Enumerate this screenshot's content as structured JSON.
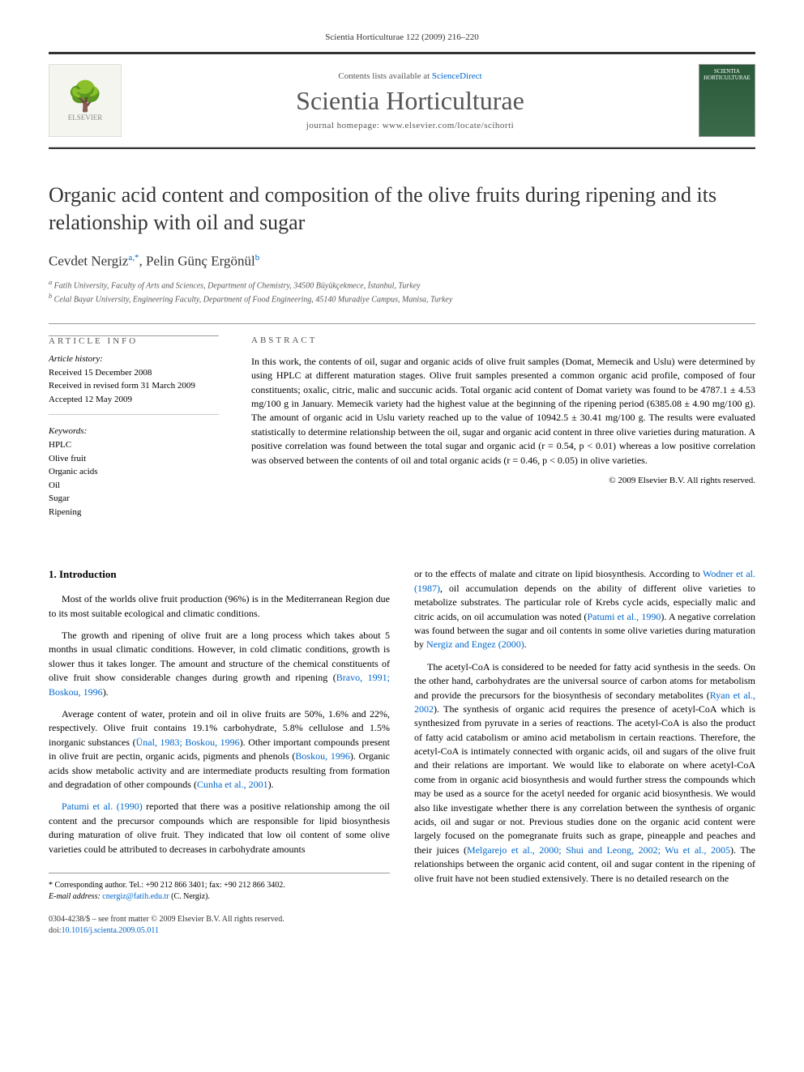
{
  "header": {
    "citation": "Scientia Horticulturae 122 (2009) 216–220",
    "contents_prefix": "Contents lists available at ",
    "contents_link": "ScienceDirect",
    "journal_name": "Scientia Horticulturae",
    "homepage_prefix": "journal homepage: ",
    "homepage_url": "www.elsevier.com/locate/scihorti",
    "elsevier_label": "ELSEVIER",
    "cover_label": "SCIENTIA HORTICULTURAE"
  },
  "title": "Organic acid content and composition of the olive fruits during ripening and its relationship with oil and sugar",
  "authors": [
    {
      "name": "Cevdet Nergiz",
      "marks": "a,*"
    },
    {
      "name": "Pelin Günç Ergönül",
      "marks": "b"
    }
  ],
  "affiliations": [
    {
      "mark": "a",
      "text": "Fatih University, Faculty of Arts and Sciences, Department of Chemistry, 34500 Büyükçekmece, İstanbul, Turkey"
    },
    {
      "mark": "b",
      "text": "Celal Bayar University, Engineering Faculty, Department of Food Engineering, 45140 Muradiye Campus, Manisa, Turkey"
    }
  ],
  "article_info": {
    "heading": "ARTICLE INFO",
    "history_label": "Article history:",
    "history": [
      "Received 15 December 2008",
      "Received in revised form 31 March 2009",
      "Accepted 12 May 2009"
    ],
    "keywords_label": "Keywords:",
    "keywords": [
      "HPLC",
      "Olive fruit",
      "Organic acids",
      "Oil",
      "Sugar",
      "Ripening"
    ]
  },
  "abstract": {
    "heading": "ABSTRACT",
    "text": "In this work, the contents of oil, sugar and organic acids of olive fruit samples (Domat, Memecik and Uslu) were determined by using HPLC at different maturation stages. Olive fruit samples presented a common organic acid profile, composed of four constituents; oxalic, citric, malic and succunic acids. Total organic acid content of Domat variety was found to be 4787.1 ± 4.53 mg/100 g in January. Memecik variety had the highest value at the beginning of the ripening period (6385.08 ± 4.90 mg/100 g). The amount of organic acid in Uslu variety reached up to the value of 10942.5 ± 30.41 mg/100 g. The results were evaluated statistically to determine relationship between the oil, sugar and organic acid content in three olive varieties during maturation. A positive correlation was found between the total sugar and organic acid (r = 0.54, p < 0.01) whereas a low positive correlation was observed between the contents of oil and total organic acids (r = 0.46, p < 0.05) in olive varieties.",
    "copyright": "© 2009 Elsevier B.V. All rights reserved."
  },
  "body": {
    "section_heading": "1. Introduction",
    "left_paras": [
      "Most of the worlds olive fruit production (96%) is in the Mediterranean Region due to its most suitable ecological and climatic conditions.",
      "The growth and ripening of olive fruit are a long process which takes about 5 months in usual climatic conditions. However, in cold climatic conditions, growth is slower thus it takes longer. The amount and structure of the chemical constituents of olive fruit show considerable changes during growth and ripening (<span class='ref-link'>Bravo, 1991; Boskou, 1996</span>).",
      "Average content of water, protein and oil in olive fruits are 50%, 1.6% and 22%, respectively. Olive fruit contains 19.1% carbohydrate, 5.8% cellulose and 1.5% inorganic substances (<span class='ref-link'>Ünal, 1983; Boskou, 1996</span>). Other important compounds present in olive fruit are pectin, organic acids, pigments and phenols (<span class='ref-link'>Boskou, 1996</span>). Organic acids show metabolic activity and are intermediate products resulting from formation and degradation of other compounds (<span class='ref-link'>Cunha et al., 2001</span>).",
      "<span class='ref-link'>Patumi et al. (1990)</span> reported that there was a positive relationship among the oil content and the precursor compounds which are responsible for lipid biosynthesis during maturation of olive fruit. They indicated that low oil content of some olive varieties could be attributed to decreases in carbohydrate amounts"
    ],
    "right_paras": [
      "or to the effects of malate and citrate on lipid biosynthesis. According to <span class='ref-link'>Wodner et al. (1987)</span>, oil accumulation depends on the ability of different olive varieties to metabolize substrates. The particular role of Krebs cycle acids, especially malic and citric acids, on oil accumulation was noted (<span class='ref-link'>Patumi et al., 1990</span>). A negative correlation was found between the sugar and oil contents in some olive varieties during maturation by <span class='ref-link'>Nergiz and Engez (2000)</span>.",
      "The acetyl-CoA is considered to be needed for fatty acid synthesis in the seeds. On the other hand, carbohydrates are the universal source of carbon atoms for metabolism and provide the precursors for the biosynthesis of secondary metabolites (<span class='ref-link'>Ryan et al., 2002</span>). The synthesis of organic acid requires the presence of acetyl-CoA which is synthesized from pyruvate in a series of reactions. The acetyl-CoA is also the product of fatty acid catabolism or amino acid metabolism in certain reactions. Therefore, the acetyl-CoA is intimately connected with organic acids, oil and sugars of the olive fruit and their relations are important. We would like to elaborate on where acetyl-CoA come from in organic acid biosynthesis and would further stress the compounds which may be used as a source for the acetyl needed for organic acid biosynthesis. We would also like investigate whether there is any correlation between the synthesis of organic acids, oil and sugar or not. Previous studies done on the organic acid content were largely focused on the pomegranate fruits such as grape, pineapple and peaches and their juices (<span class='ref-link'>Melgarejo et al., 2000; Shui and Leong, 2002; Wu et al., 2005</span>). The relationships between the organic acid content, oil and sugar content in the ripening of olive fruit have not been studied extensively. There is no detailed research on the"
    ]
  },
  "footnotes": {
    "corr": "* Corresponding author. Tel.: +90 212 866 3401; fax: +90 212 866 3402.",
    "email_label": "E-mail address: ",
    "email": "cnergiz@fatih.edu.tr",
    "email_paren": " (C. Nergiz)."
  },
  "footer": {
    "line1": "0304-4238/$ – see front matter © 2009 Elsevier B.V. All rights reserved.",
    "doi_prefix": "doi:",
    "doi": "10.1016/j.scienta.2009.05.011"
  },
  "colors": {
    "link": "#0066cc",
    "rule": "#333333",
    "text": "#000000",
    "muted": "#555555"
  },
  "typography": {
    "title_fontsize": 26,
    "body_fontsize": 12,
    "journal_fontsize": 32,
    "info_fontsize": 11,
    "footnote_fontsize": 10
  }
}
